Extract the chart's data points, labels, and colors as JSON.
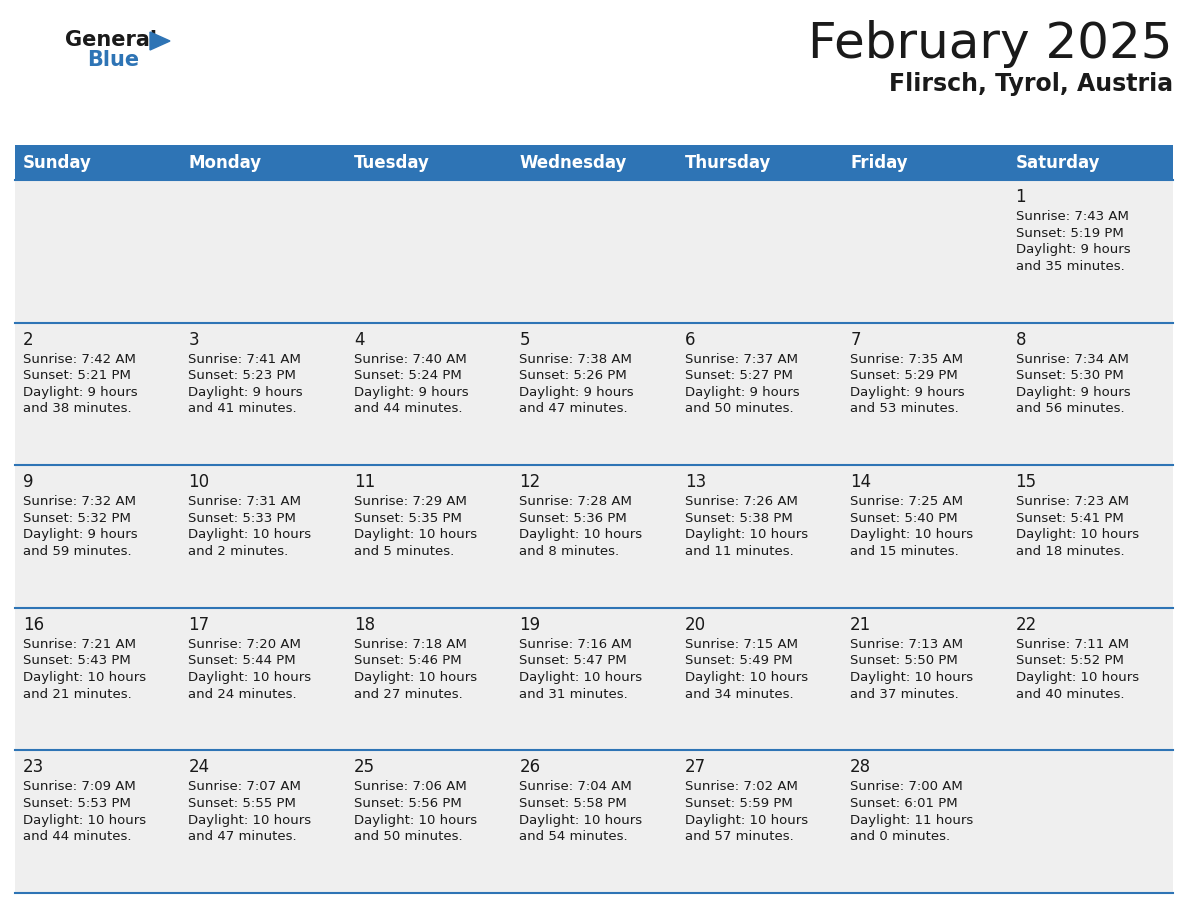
{
  "title": "February 2025",
  "subtitle": "Flirsch, Tyrol, Austria",
  "header_color": "#2E74B5",
  "header_text_color": "#FFFFFF",
  "day_names": [
    "Sunday",
    "Monday",
    "Tuesday",
    "Wednesday",
    "Thursday",
    "Friday",
    "Saturday"
  ],
  "background_color": "#FFFFFF",
  "cell_bg": "#EFEFEF",
  "row_line_color": "#2E74B5",
  "text_color": "#1a1a1a",
  "days": [
    {
      "day": 1,
      "col": 6,
      "row": 0,
      "sunrise": "7:43 AM",
      "sunset": "5:19 PM",
      "daylight_line1": "Daylight: 9 hours",
      "daylight_line2": "and 35 minutes."
    },
    {
      "day": 2,
      "col": 0,
      "row": 1,
      "sunrise": "7:42 AM",
      "sunset": "5:21 PM",
      "daylight_line1": "Daylight: 9 hours",
      "daylight_line2": "and 38 minutes."
    },
    {
      "day": 3,
      "col": 1,
      "row": 1,
      "sunrise": "7:41 AM",
      "sunset": "5:23 PM",
      "daylight_line1": "Daylight: 9 hours",
      "daylight_line2": "and 41 minutes."
    },
    {
      "day": 4,
      "col": 2,
      "row": 1,
      "sunrise": "7:40 AM",
      "sunset": "5:24 PM",
      "daylight_line1": "Daylight: 9 hours",
      "daylight_line2": "and 44 minutes."
    },
    {
      "day": 5,
      "col": 3,
      "row": 1,
      "sunrise": "7:38 AM",
      "sunset": "5:26 PM",
      "daylight_line1": "Daylight: 9 hours",
      "daylight_line2": "and 47 minutes."
    },
    {
      "day": 6,
      "col": 4,
      "row": 1,
      "sunrise": "7:37 AM",
      "sunset": "5:27 PM",
      "daylight_line1": "Daylight: 9 hours",
      "daylight_line2": "and 50 minutes."
    },
    {
      "day": 7,
      "col": 5,
      "row": 1,
      "sunrise": "7:35 AM",
      "sunset": "5:29 PM",
      "daylight_line1": "Daylight: 9 hours",
      "daylight_line2": "and 53 minutes."
    },
    {
      "day": 8,
      "col": 6,
      "row": 1,
      "sunrise": "7:34 AM",
      "sunset": "5:30 PM",
      "daylight_line1": "Daylight: 9 hours",
      "daylight_line2": "and 56 minutes."
    },
    {
      "day": 9,
      "col": 0,
      "row": 2,
      "sunrise": "7:32 AM",
      "sunset": "5:32 PM",
      "daylight_line1": "Daylight: 9 hours",
      "daylight_line2": "and 59 minutes."
    },
    {
      "day": 10,
      "col": 1,
      "row": 2,
      "sunrise": "7:31 AM",
      "sunset": "5:33 PM",
      "daylight_line1": "Daylight: 10 hours",
      "daylight_line2": "and 2 minutes."
    },
    {
      "day": 11,
      "col": 2,
      "row": 2,
      "sunrise": "7:29 AM",
      "sunset": "5:35 PM",
      "daylight_line1": "Daylight: 10 hours",
      "daylight_line2": "and 5 minutes."
    },
    {
      "day": 12,
      "col": 3,
      "row": 2,
      "sunrise": "7:28 AM",
      "sunset": "5:36 PM",
      "daylight_line1": "Daylight: 10 hours",
      "daylight_line2": "and 8 minutes."
    },
    {
      "day": 13,
      "col": 4,
      "row": 2,
      "sunrise": "7:26 AM",
      "sunset": "5:38 PM",
      "daylight_line1": "Daylight: 10 hours",
      "daylight_line2": "and 11 minutes."
    },
    {
      "day": 14,
      "col": 5,
      "row": 2,
      "sunrise": "7:25 AM",
      "sunset": "5:40 PM",
      "daylight_line1": "Daylight: 10 hours",
      "daylight_line2": "and 15 minutes."
    },
    {
      "day": 15,
      "col": 6,
      "row": 2,
      "sunrise": "7:23 AM",
      "sunset": "5:41 PM",
      "daylight_line1": "Daylight: 10 hours",
      "daylight_line2": "and 18 minutes."
    },
    {
      "day": 16,
      "col": 0,
      "row": 3,
      "sunrise": "7:21 AM",
      "sunset": "5:43 PM",
      "daylight_line1": "Daylight: 10 hours",
      "daylight_line2": "and 21 minutes."
    },
    {
      "day": 17,
      "col": 1,
      "row": 3,
      "sunrise": "7:20 AM",
      "sunset": "5:44 PM",
      "daylight_line1": "Daylight: 10 hours",
      "daylight_line2": "and 24 minutes."
    },
    {
      "day": 18,
      "col": 2,
      "row": 3,
      "sunrise": "7:18 AM",
      "sunset": "5:46 PM",
      "daylight_line1": "Daylight: 10 hours",
      "daylight_line2": "and 27 minutes."
    },
    {
      "day": 19,
      "col": 3,
      "row": 3,
      "sunrise": "7:16 AM",
      "sunset": "5:47 PM",
      "daylight_line1": "Daylight: 10 hours",
      "daylight_line2": "and 31 minutes."
    },
    {
      "day": 20,
      "col": 4,
      "row": 3,
      "sunrise": "7:15 AM",
      "sunset": "5:49 PM",
      "daylight_line1": "Daylight: 10 hours",
      "daylight_line2": "and 34 minutes."
    },
    {
      "day": 21,
      "col": 5,
      "row": 3,
      "sunrise": "7:13 AM",
      "sunset": "5:50 PM",
      "daylight_line1": "Daylight: 10 hours",
      "daylight_line2": "and 37 minutes."
    },
    {
      "day": 22,
      "col": 6,
      "row": 3,
      "sunrise": "7:11 AM",
      "sunset": "5:52 PM",
      "daylight_line1": "Daylight: 10 hours",
      "daylight_line2": "and 40 minutes."
    },
    {
      "day": 23,
      "col": 0,
      "row": 4,
      "sunrise": "7:09 AM",
      "sunset": "5:53 PM",
      "daylight_line1": "Daylight: 10 hours",
      "daylight_line2": "and 44 minutes."
    },
    {
      "day": 24,
      "col": 1,
      "row": 4,
      "sunrise": "7:07 AM",
      "sunset": "5:55 PM",
      "daylight_line1": "Daylight: 10 hours",
      "daylight_line2": "and 47 minutes."
    },
    {
      "day": 25,
      "col": 2,
      "row": 4,
      "sunrise": "7:06 AM",
      "sunset": "5:56 PM",
      "daylight_line1": "Daylight: 10 hours",
      "daylight_line2": "and 50 minutes."
    },
    {
      "day": 26,
      "col": 3,
      "row": 4,
      "sunrise": "7:04 AM",
      "sunset": "5:58 PM",
      "daylight_line1": "Daylight: 10 hours",
      "daylight_line2": "and 54 minutes."
    },
    {
      "day": 27,
      "col": 4,
      "row": 4,
      "sunrise": "7:02 AM",
      "sunset": "5:59 PM",
      "daylight_line1": "Daylight: 10 hours",
      "daylight_line2": "and 57 minutes."
    },
    {
      "day": 28,
      "col": 5,
      "row": 4,
      "sunrise": "7:00 AM",
      "sunset": "6:01 PM",
      "daylight_line1": "Daylight: 11 hours",
      "daylight_line2": "and 0 minutes."
    }
  ],
  "fig_width": 11.88,
  "fig_height": 9.18,
  "dpi": 100,
  "title_fontsize": 36,
  "subtitle_fontsize": 17,
  "header_fontsize": 12,
  "day_num_fontsize": 12,
  "cell_text_fontsize": 9.5
}
